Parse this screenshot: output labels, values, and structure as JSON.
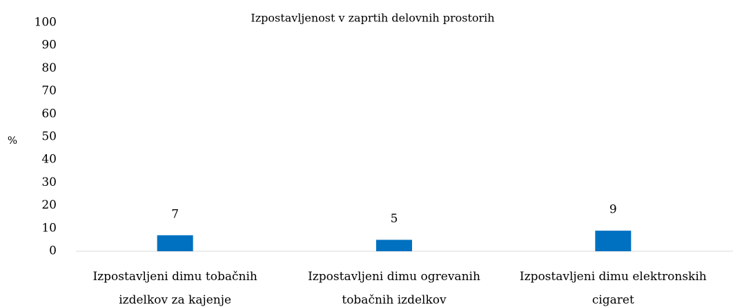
{
  "chart_data": {
    "type": "bar",
    "title": "Izpostavljenost v zaprtih delovnih prostorih",
    "y_label": "%",
    "categories": [
      "Izpostavljeni dimu tobačnih izdelkov za kajenje",
      "Izpostavljeni dimu ogrevanih tobačnih izdelkov",
      "Izpostavljeni dimu elektronskih cigaret"
    ],
    "values": [
      7,
      5,
      9
    ],
    "color": "#0070c0",
    "ylim": [
      0,
      100
    ],
    "yticks": [
      0,
      10,
      20,
      30,
      40,
      50,
      60,
      70,
      80,
      90,
      100
    ],
    "grid": false
  }
}
